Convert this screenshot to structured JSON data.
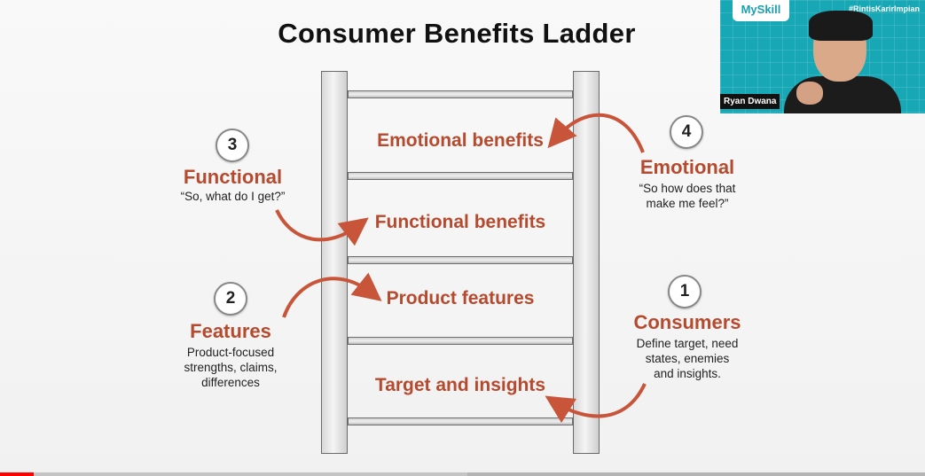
{
  "slide": {
    "title": "Consumer Benefits Ladder",
    "steps": [
      "Emotional benefits",
      "Functional benefits",
      "Product features",
      "Target and insights"
    ],
    "callouts": {
      "functional": {
        "number": "3",
        "title": "Functional",
        "desc": "“So, what do I get?”"
      },
      "emotional": {
        "number": "4",
        "title": "Emotional",
        "desc_lines": [
          "“So how does that",
          "make me feel?”"
        ]
      },
      "features": {
        "number": "2",
        "title": "Features",
        "desc_lines": [
          "Product-focused",
          "strengths, claims,",
          "differences"
        ]
      },
      "consumers": {
        "number": "1",
        "title": "Consumers",
        "desc_lines": [
          "Define target, need",
          "states, enemies",
          "and insights."
        ]
      }
    },
    "colors": {
      "accent": "#b54a2e",
      "arrow": "#c8553a"
    }
  },
  "webcam": {
    "brand": "MySkill",
    "hashtag": "#RintisKarirImpian",
    "speaker_name": "Ryan Dwana"
  },
  "player": {
    "played_fraction": 0.036,
    "buffered_fraction": 0.505
  }
}
